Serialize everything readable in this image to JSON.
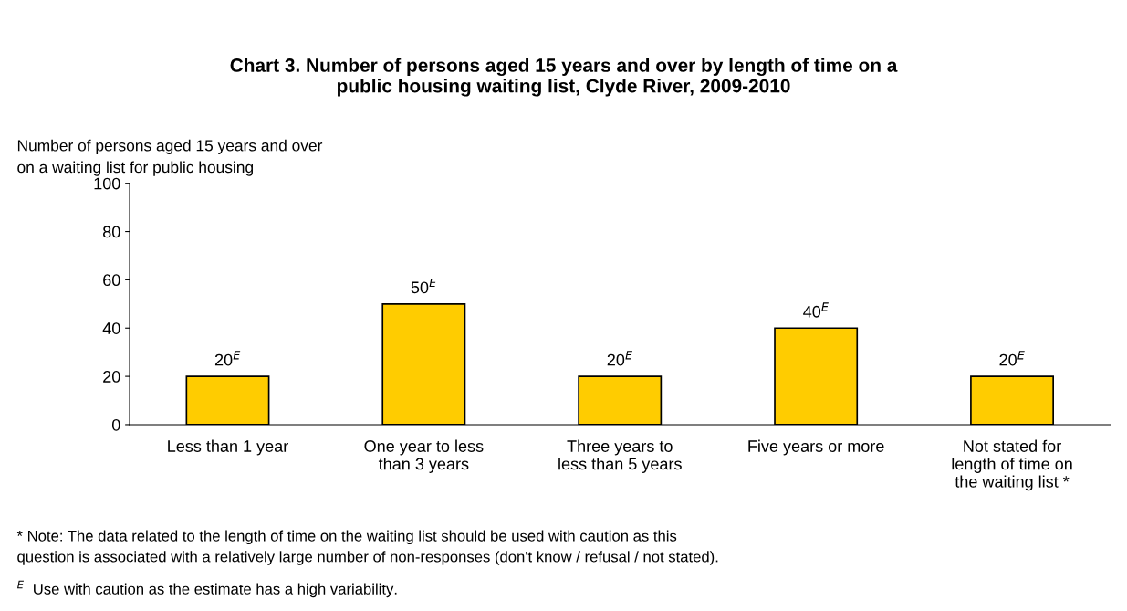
{
  "chart_data": {
    "type": "bar",
    "title": "Chart 3. Number of persons aged 15 years and over by length of time on a\npublic housing waiting list, Clyde River, 2009-2010",
    "ylabel": "Number of persons aged 15 years and over\non a waiting list for public housing",
    "categories": [
      "Less than 1 year",
      "One year to less\nthan 3 years",
      "Three years to\nless than 5 years",
      "Five years or more",
      "Not stated for\nlength of time on\nthe waiting list *"
    ],
    "values": [
      20,
      50,
      20,
      40,
      20
    ],
    "value_labels": [
      "20$^{E}$",
      "50$^{E}$",
      "20$^{E}$",
      "40$^{E}$",
      "20$^{E}$"
    ],
    "color": "#ffcc00",
    "ylim": [
      0,
      100
    ],
    "yticks": [
      0,
      20,
      40,
      60,
      80,
      100
    ],
    "grid": false,
    "legend": false,
    "annotations": [
      "* Note: The data related to the length of time on the waiting list should be used with caution as this\nquestion is associated with a relatively large number of non-responses (don't know / refusal / not stated).",
      "$^{E}$  Use with caution as the estimate has a high variability."
    ]
  }
}
